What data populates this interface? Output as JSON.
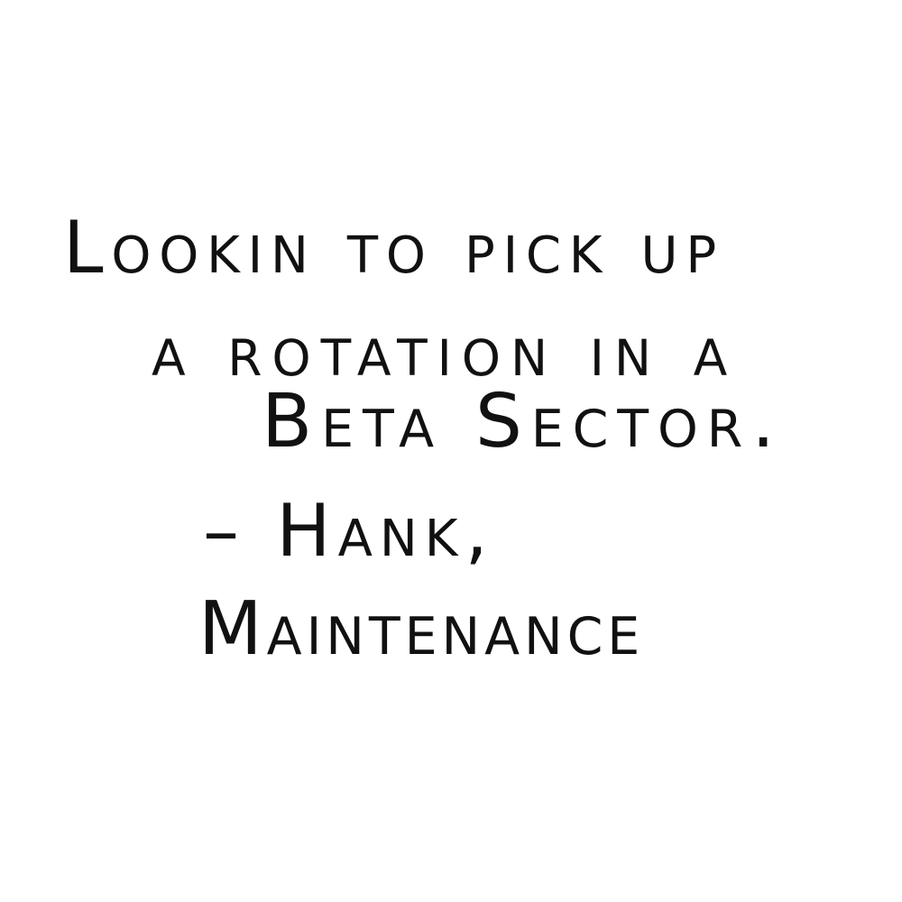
{
  "quote": {
    "lines": [
      "Lookin to pick up",
      "a rotation in a",
      "Beta Sector."
    ]
  },
  "attribution": {
    "name_line": "– Hank,",
    "role_line": "Maintenance"
  },
  "colors": {
    "background": "#ffffff",
    "ink": "#111111"
  }
}
